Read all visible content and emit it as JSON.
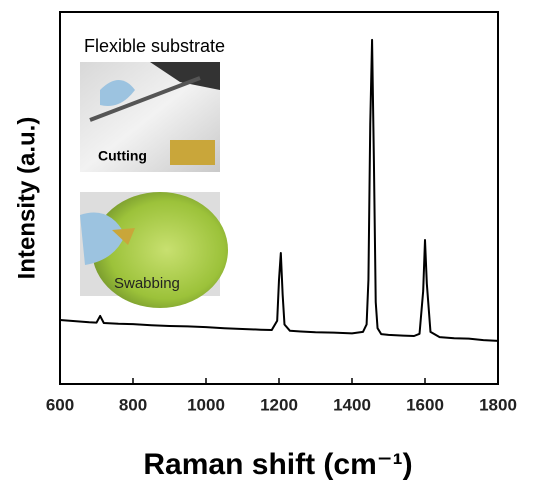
{
  "chart_data": {
    "type": "line",
    "xlabel": "Raman shift (cm⁻¹)",
    "ylabel": "Intensity (a.u.)",
    "annotations": [
      "Flexible substrate",
      "Cutting",
      "Swabbing"
    ],
    "x": [
      600,
      640,
      680,
      700,
      710,
      720,
      760,
      800,
      850,
      900,
      950,
      1000,
      1050,
      1100,
      1150,
      1180,
      1195,
      1200,
      1205,
      1210,
      1215,
      1230,
      1260,
      1300,
      1350,
      1400,
      1430,
      1440,
      1445,
      1450,
      1455,
      1460,
      1465,
      1470,
      1480,
      1500,
      1540,
      1570,
      1585,
      1595,
      1600,
      1605,
      1615,
      1640,
      1680,
      1720,
      1760,
      1800
    ],
    "series": [
      {
        "color": "#000000",
        "values": [
          17.2,
          16.9,
          16.6,
          16.5,
          18.3,
          16.4,
          16.2,
          16.1,
          15.8,
          15.6,
          15.5,
          15.3,
          15.0,
          14.8,
          14.6,
          14.5,
          17,
          28,
          35.2,
          24,
          16,
          14.3,
          14.1,
          13.9,
          13.8,
          13.6,
          14,
          16,
          28,
          70,
          92.5,
          60,
          22,
          15,
          13.4,
          13.2,
          13.0,
          12.9,
          13.5,
          25,
          38.7,
          27,
          14,
          12.6,
          12.3,
          12.2,
          11.8,
          11.6
        ]
      }
    ],
    "xlim": [
      600,
      1800
    ],
    "xticks": [
      600,
      800,
      1000,
      1200,
      1400,
      1600,
      1800
    ],
    "ylim": [
      0,
      100
    ]
  }
}
